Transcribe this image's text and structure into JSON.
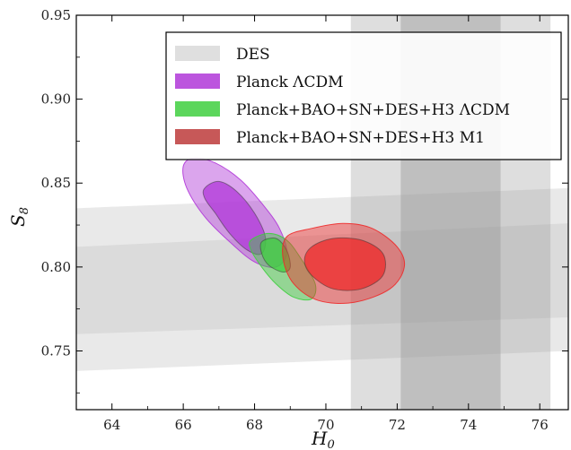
{
  "chart_data": {
    "type": "scatter",
    "xlabel_main": "H",
    "xlabel_sub": "0",
    "ylabel_main": "S",
    "ylabel_sub": "8",
    "xlim": [
      63,
      76.8
    ],
    "ylim": [
      0.715,
      0.95
    ],
    "x_ticks": [
      "64",
      "66",
      "68",
      "70",
      "72",
      "74",
      "76"
    ],
    "x_tick_values": [
      64,
      66,
      68,
      70,
      72,
      74,
      76
    ],
    "y_ticks": [
      "0.75",
      "0.80",
      "0.85",
      "0.90",
      "0.95"
    ],
    "y_tick_values": [
      0.75,
      0.8,
      0.85,
      0.9,
      0.95
    ],
    "legend_position": "top-right",
    "legend": [
      {
        "label": "DES",
        "color": "#d9d9d9"
      },
      {
        "label": "Planck ΛCDM",
        "color": "#b037d8"
      },
      {
        "label": "Planck+BAO+SN+DES+H3 ΛCDM",
        "color": "#3fcf3f"
      },
      {
        "label": "Planck+BAO+SN+DES+H3 M1",
        "color": "#bd3b3b"
      }
    ],
    "des_band": {
      "color": "#cfcfcf",
      "outer_95": {
        "x": [
          63,
          76.8
        ],
        "lower": [
          0.738,
          0.75
        ],
        "upper": [
          0.835,
          0.847
        ]
      },
      "inner_68": {
        "x": [
          63,
          76.8
        ],
        "lower": [
          0.76,
          0.77
        ],
        "upper": [
          0.812,
          0.826
        ]
      }
    },
    "h0_band": {
      "color": "#999999",
      "outer_95": [
        70.7,
        76.3
      ],
      "inner_68": [
        72.1,
        74.9
      ]
    },
    "contours": [
      {
        "name": "Planck ΛCDM",
        "color": "#b037d8",
        "outer": [
          [
            66.0,
            0.86
          ],
          [
            66.3,
            0.865
          ],
          [
            66.9,
            0.862
          ],
          [
            67.6,
            0.852
          ],
          [
            68.2,
            0.838
          ],
          [
            68.7,
            0.823
          ],
          [
            68.9,
            0.808
          ],
          [
            68.6,
            0.8
          ],
          [
            68.0,
            0.803
          ],
          [
            67.3,
            0.815
          ],
          [
            66.6,
            0.83
          ],
          [
            66.1,
            0.847
          ]
        ],
        "inner": [
          [
            66.6,
            0.847
          ],
          [
            67.0,
            0.851
          ],
          [
            67.5,
            0.845
          ],
          [
            68.0,
            0.832
          ],
          [
            68.3,
            0.818
          ],
          [
            68.2,
            0.808
          ],
          [
            67.8,
            0.81
          ],
          [
            67.3,
            0.82
          ],
          [
            66.9,
            0.832
          ],
          [
            66.6,
            0.841
          ]
        ]
      },
      {
        "name": "Planck+BAO+SN+DES+H3 ΛCDM",
        "color": "#3fcf3f",
        "outer": [
          [
            67.9,
            0.816
          ],
          [
            68.4,
            0.82
          ],
          [
            68.9,
            0.816
          ],
          [
            69.3,
            0.805
          ],
          [
            69.7,
            0.79
          ],
          [
            69.6,
            0.781
          ],
          [
            69.1,
            0.782
          ],
          [
            68.6,
            0.79
          ],
          [
            68.2,
            0.8
          ],
          [
            67.9,
            0.81
          ]
        ],
        "inner": [
          [
            68.2,
            0.815
          ],
          [
            68.6,
            0.817
          ],
          [
            68.9,
            0.81
          ],
          [
            69.0,
            0.8
          ],
          [
            68.8,
            0.797
          ],
          [
            68.4,
            0.801
          ],
          [
            68.2,
            0.808
          ]
        ]
      },
      {
        "name": "Planck+BAO+SN+DES+H3 M1",
        "color": "#ee2a2a",
        "outer": [
          [
            68.9,
            0.818
          ],
          [
            69.6,
            0.823
          ],
          [
            70.5,
            0.826
          ],
          [
            71.3,
            0.823
          ],
          [
            72.0,
            0.812
          ],
          [
            72.2,
            0.8
          ],
          [
            71.8,
            0.787
          ],
          [
            70.8,
            0.779
          ],
          [
            69.8,
            0.78
          ],
          [
            69.1,
            0.79
          ],
          [
            68.8,
            0.805
          ]
        ],
        "inner": [
          [
            69.6,
            0.812
          ],
          [
            70.2,
            0.817
          ],
          [
            71.0,
            0.816
          ],
          [
            71.6,
            0.808
          ],
          [
            71.6,
            0.795
          ],
          [
            71.0,
            0.787
          ],
          [
            70.2,
            0.787
          ],
          [
            69.6,
            0.795
          ],
          [
            69.4,
            0.804
          ]
        ]
      }
    ]
  }
}
